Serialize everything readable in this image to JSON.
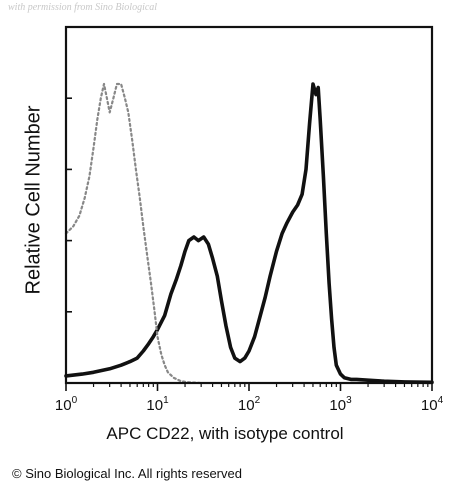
{
  "watermark": "with permission from Sino Biological",
  "copyright": "© Sino Biological Inc. All rights reserved",
  "chart_data": {
    "type": "line",
    "title": "",
    "xlabel": "APC CD22, with isotype control",
    "ylabel": "Relative Cell Number",
    "x_scale": "log",
    "xlim": [
      1,
      10000
    ],
    "ylim": [
      0,
      100
    ],
    "x_ticks": [
      {
        "value": 1,
        "base": "10",
        "exp": "0"
      },
      {
        "value": 10,
        "base": "10",
        "exp": "1"
      },
      {
        "value": 100,
        "base": "10",
        "exp": "2"
      },
      {
        "value": 1000,
        "base": "10",
        "exp": "3"
      },
      {
        "value": 10000,
        "base": "10",
        "exp": "4"
      }
    ],
    "y_ticks": [
      0,
      20,
      40,
      60,
      80,
      100
    ],
    "grid": false,
    "legend": "none",
    "series": [
      {
        "style": "solid",
        "color": "#111111",
        "x": [
          1,
          1.5,
          2,
          3,
          4,
          5,
          6,
          7,
          8,
          9,
          10,
          12,
          14,
          16,
          18,
          20,
          22,
          25,
          28,
          32,
          36,
          40,
          45,
          50,
          56,
          63,
          70,
          80,
          90,
          100,
          115,
          130,
          150,
          170,
          200,
          230,
          260,
          300,
          340,
          380,
          420,
          460,
          500,
          540,
          570,
          600,
          650,
          700,
          750,
          800,
          850,
          900,
          1000,
          1100,
          1300,
          1500,
          2000,
          3000,
          5000,
          10000
        ],
        "y": [
          2,
          2.5,
          3,
          4,
          5,
          6,
          7,
          9,
          11,
          13,
          15,
          19,
          25,
          29,
          33,
          37,
          40,
          41,
          40,
          41,
          39,
          35,
          30,
          23,
          16,
          10,
          7,
          6,
          7,
          9,
          13,
          18,
          24,
          30,
          37,
          42,
          45,
          48,
          50,
          53,
          60,
          73,
          84,
          81,
          83,
          74,
          58,
          42,
          28,
          18,
          10,
          5,
          2.5,
          1.5,
          1,
          1,
          0.8,
          0.5,
          0.3,
          0.2
        ]
      },
      {
        "style": "dashed",
        "color": "#888888",
        "x": [
          1,
          1.2,
          1.4,
          1.6,
          1.8,
          2,
          2.2,
          2.4,
          2.6,
          2.8,
          3,
          3.3,
          3.6,
          4,
          4.4,
          4.8,
          5.3,
          5.8,
          6.4,
          7,
          7.7,
          8.5,
          9.3,
          10,
          11,
          12,
          13,
          15,
          18,
          22,
          30
        ],
        "y": [
          42,
          44,
          47,
          52,
          58,
          66,
          74,
          80,
          84,
          80,
          76,
          80,
          84,
          84,
          80,
          76,
          68,
          60,
          52,
          44,
          36,
          28,
          20,
          13,
          8,
          5,
          3,
          1.5,
          0.5,
          0.2,
          0
        ]
      }
    ]
  }
}
